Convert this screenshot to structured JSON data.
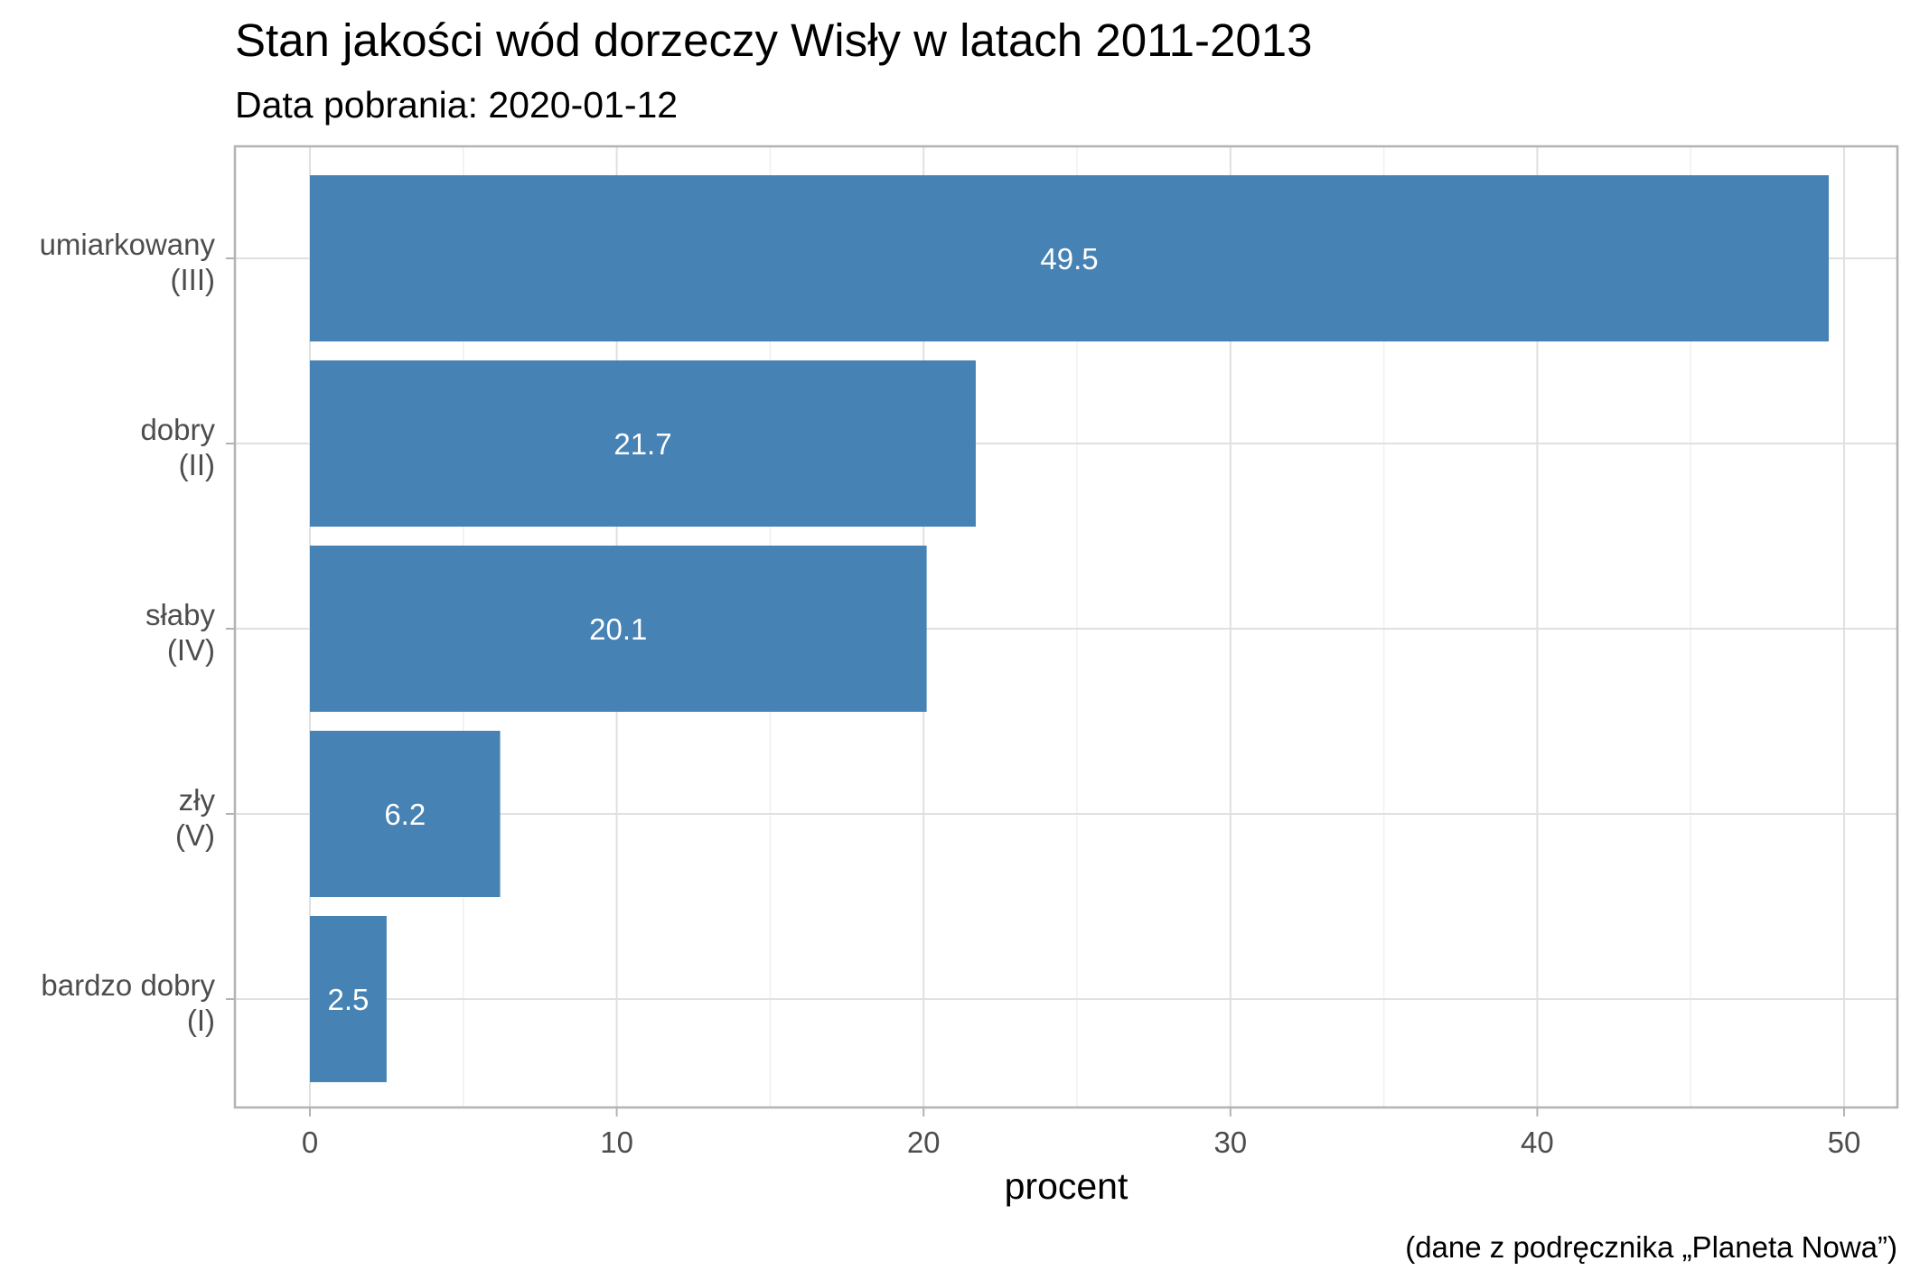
{
  "chart_data": {
    "type": "bar",
    "orientation": "horizontal",
    "title": "Stan jakości wód dorzeczy Wisły w latach 2011-2013",
    "subtitle": "Data pobrania: 2020-01-12",
    "caption": "(dane z podręcznika „Planeta Nowa”)",
    "xlabel": "procent",
    "ylabel": "",
    "xlim": [
      0,
      50
    ],
    "x_ticks": [
      "0",
      "10",
      "20",
      "30",
      "40",
      "50"
    ],
    "categories": [
      {
        "line1": "umiarkowany",
        "line2": "(III)"
      },
      {
        "line1": "dobry",
        "line2": "(II)"
      },
      {
        "line1": "słaby",
        "line2": "(IV)"
      },
      {
        "line1": "zły",
        "line2": "(V)"
      },
      {
        "line1": "bardzo dobry",
        "line2": "(I)"
      }
    ],
    "values": [
      49.5,
      21.7,
      20.1,
      6.2,
      2.5
    ],
    "value_labels": [
      "49.5",
      "21.7",
      "20.1",
      "6.2",
      "2.5"
    ],
    "bar_color": "#4682b4",
    "grid": true,
    "legend": "none"
  }
}
